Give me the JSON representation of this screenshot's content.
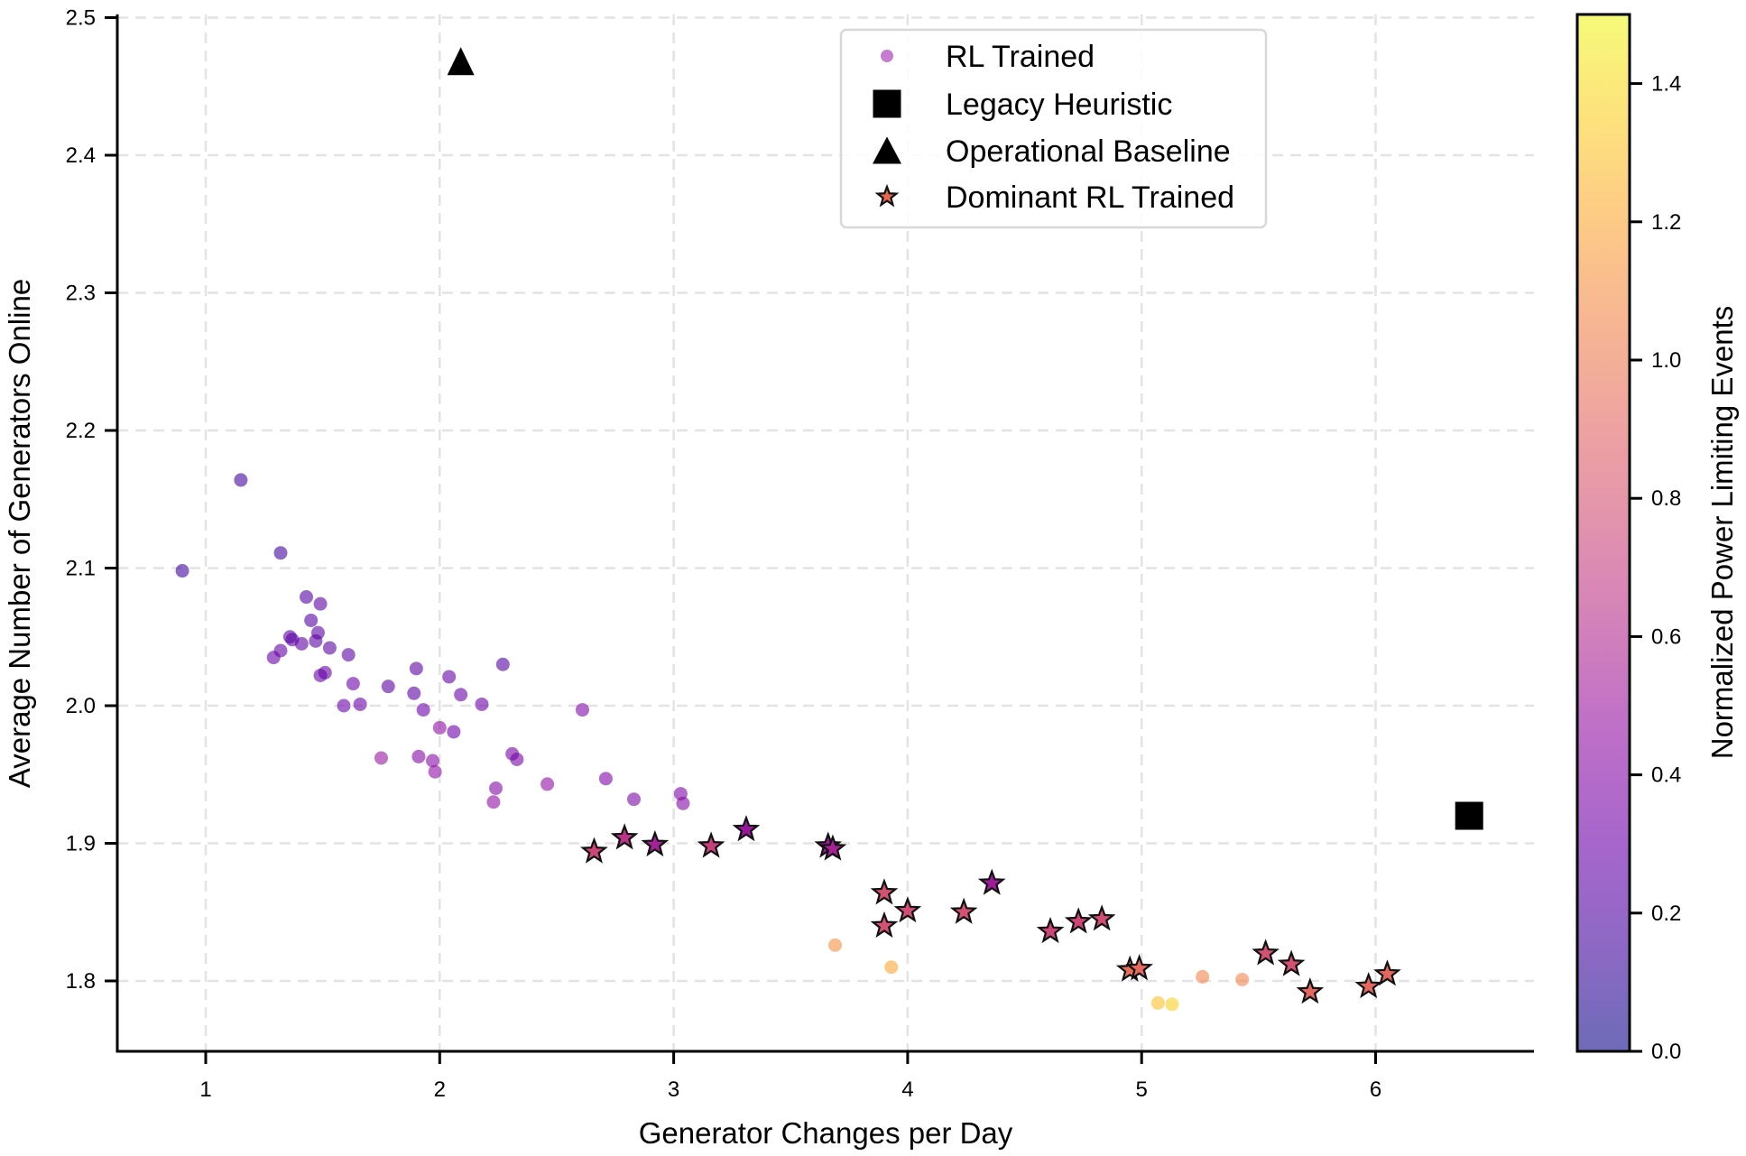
{
  "chart_data": {
    "type": "scatter",
    "title": "",
    "xlabel": "Generator Changes per Day",
    "ylabel": "Average Number of Generators Online",
    "xlim": [
      0.62,
      6.66
    ],
    "ylim": [
      1.71,
      2.5
    ],
    "x_ticks": [
      1,
      2,
      3,
      4,
      5,
      6
    ],
    "x_tick_labels": [
      "1",
      "2",
      "3",
      "4",
      "5",
      "6"
    ],
    "y_ticks": [
      1.8,
      1.9,
      2.0,
      2.1,
      2.2,
      2.3,
      2.4,
      2.5
    ],
    "y_tick_labels": [
      "1.8",
      "1.9",
      "2.0",
      "2.1",
      "2.2",
      "2.3",
      "2.4",
      "2.5"
    ],
    "grid": true,
    "colorbar": {
      "label": "Normalized Power Limiting Events",
      "colormap": "plasma",
      "range": [
        0.0,
        1.5
      ],
      "ticks": [
        0.0,
        0.2,
        0.4,
        0.6,
        0.8,
        1.0,
        1.2,
        1.4
      ],
      "tick_labels": [
        "0.0",
        "0.2",
        "0.4",
        "0.6",
        "0.8",
        "1.0",
        "1.2",
        "1.4"
      ]
    },
    "legend": {
      "placement": "top-center",
      "entries": [
        {
          "label": "RL Trained",
          "marker": "circle",
          "color": "#c77cd2"
        },
        {
          "label": "Legacy Heuristic",
          "marker": "square",
          "color": "#000000"
        },
        {
          "label": "Operational Baseline",
          "marker": "triangle",
          "color": "#000000"
        },
        {
          "label": "Dominant RL Trained",
          "marker": "star",
          "color": "#e8674f"
        }
      ]
    },
    "series": [
      {
        "name": "RL Trained",
        "marker": "circle",
        "points": [
          {
            "x": 0.9,
            "y": 2.098,
            "c": 0.15
          },
          {
            "x": 1.15,
            "y": 2.164,
            "c": 0.15
          },
          {
            "x": 1.32,
            "y": 2.111,
            "c": 0.15
          },
          {
            "x": 1.43,
            "y": 2.079,
            "c": 0.22
          },
          {
            "x": 1.49,
            "y": 2.074,
            "c": 0.25
          },
          {
            "x": 1.45,
            "y": 2.062,
            "c": 0.22
          },
          {
            "x": 1.36,
            "y": 2.05,
            "c": 0.25
          },
          {
            "x": 1.37,
            "y": 2.048,
            "c": 0.25
          },
          {
            "x": 1.48,
            "y": 2.053,
            "c": 0.25
          },
          {
            "x": 1.47,
            "y": 2.047,
            "c": 0.25
          },
          {
            "x": 1.41,
            "y": 2.045,
            "c": 0.25
          },
          {
            "x": 1.32,
            "y": 2.04,
            "c": 0.28
          },
          {
            "x": 1.29,
            "y": 2.035,
            "c": 0.28
          },
          {
            "x": 1.53,
            "y": 2.042,
            "c": 0.25
          },
          {
            "x": 1.61,
            "y": 2.037,
            "c": 0.25
          },
          {
            "x": 1.51,
            "y": 2.024,
            "c": 0.28
          },
          {
            "x": 1.49,
            "y": 2.022,
            "c": 0.28
          },
          {
            "x": 1.63,
            "y": 2.016,
            "c": 0.3
          },
          {
            "x": 1.78,
            "y": 2.014,
            "c": 0.25
          },
          {
            "x": 1.9,
            "y": 2.027,
            "c": 0.25
          },
          {
            "x": 2.04,
            "y": 2.021,
            "c": 0.28
          },
          {
            "x": 2.27,
            "y": 2.03,
            "c": 0.22
          },
          {
            "x": 1.89,
            "y": 2.009,
            "c": 0.25
          },
          {
            "x": 2.09,
            "y": 2.008,
            "c": 0.3
          },
          {
            "x": 1.59,
            "y": 2.0,
            "c": 0.3
          },
          {
            "x": 1.66,
            "y": 2.001,
            "c": 0.3
          },
          {
            "x": 1.93,
            "y": 1.997,
            "c": 0.3
          },
          {
            "x": 2.18,
            "y": 2.001,
            "c": 0.3
          },
          {
            "x": 2.0,
            "y": 1.984,
            "c": 0.45
          },
          {
            "x": 2.06,
            "y": 1.981,
            "c": 0.3
          },
          {
            "x": 1.75,
            "y": 1.962,
            "c": 0.5
          },
          {
            "x": 1.91,
            "y": 1.963,
            "c": 0.4
          },
          {
            "x": 1.97,
            "y": 1.96,
            "c": 0.42
          },
          {
            "x": 1.98,
            "y": 1.952,
            "c": 0.45
          },
          {
            "x": 2.31,
            "y": 1.965,
            "c": 0.35
          },
          {
            "x": 2.33,
            "y": 1.961,
            "c": 0.35
          },
          {
            "x": 2.24,
            "y": 1.94,
            "c": 0.4
          },
          {
            "x": 2.23,
            "y": 1.93,
            "c": 0.45
          },
          {
            "x": 2.46,
            "y": 1.943,
            "c": 0.45
          },
          {
            "x": 2.61,
            "y": 1.997,
            "c": 0.38
          },
          {
            "x": 2.71,
            "y": 1.947,
            "c": 0.38
          },
          {
            "x": 2.83,
            "y": 1.932,
            "c": 0.38
          },
          {
            "x": 3.03,
            "y": 1.936,
            "c": 0.38
          },
          {
            "x": 3.04,
            "y": 1.929,
            "c": 0.4
          },
          {
            "x": 3.69,
            "y": 1.826,
            "c": 1.1
          },
          {
            "x": 3.93,
            "y": 1.81,
            "c": 1.2
          },
          {
            "x": 5.07,
            "y": 1.784,
            "c": 1.3
          },
          {
            "x": 5.13,
            "y": 1.783,
            "c": 1.35
          },
          {
            "x": 5.26,
            "y": 1.803,
            "c": 1.05
          },
          {
            "x": 5.43,
            "y": 1.801,
            "c": 1.05
          }
        ]
      },
      {
        "name": "Dominant RL Trained",
        "marker": "star",
        "points": [
          {
            "x": 2.66,
            "y": 1.894,
            "c": 0.75
          },
          {
            "x": 2.79,
            "y": 1.904,
            "c": 0.65
          },
          {
            "x": 2.92,
            "y": 1.899,
            "c": 0.55
          },
          {
            "x": 3.16,
            "y": 1.898,
            "c": 0.72
          },
          {
            "x": 3.31,
            "y": 1.91,
            "c": 0.5
          },
          {
            "x": 3.66,
            "y": 1.898,
            "c": 0.5
          },
          {
            "x": 3.68,
            "y": 1.896,
            "c": 0.55
          },
          {
            "x": 3.9,
            "y": 1.864,
            "c": 0.8
          },
          {
            "x": 4.0,
            "y": 1.851,
            "c": 0.78
          },
          {
            "x": 3.9,
            "y": 1.84,
            "c": 0.8
          },
          {
            "x": 4.24,
            "y": 1.85,
            "c": 0.8
          },
          {
            "x": 4.36,
            "y": 1.871,
            "c": 0.52
          },
          {
            "x": 4.61,
            "y": 1.836,
            "c": 0.75
          },
          {
            "x": 4.73,
            "y": 1.843,
            "c": 0.75
          },
          {
            "x": 4.83,
            "y": 1.845,
            "c": 0.78
          },
          {
            "x": 4.95,
            "y": 1.808,
            "c": 0.95
          },
          {
            "x": 4.99,
            "y": 1.809,
            "c": 0.93
          },
          {
            "x": 5.53,
            "y": 1.82,
            "c": 0.8
          },
          {
            "x": 5.64,
            "y": 1.812,
            "c": 0.8
          },
          {
            "x": 5.72,
            "y": 1.792,
            "c": 0.92
          },
          {
            "x": 5.97,
            "y": 1.796,
            "c": 0.92
          },
          {
            "x": 6.05,
            "y": 1.805,
            "c": 0.92
          }
        ]
      },
      {
        "name": "Operational Baseline",
        "marker": "triangle",
        "points": [
          {
            "x": 2.09,
            "y": 2.468
          }
        ]
      },
      {
        "name": "Legacy Heuristic",
        "marker": "square",
        "points": [
          {
            "x": 6.4,
            "y": 1.92
          }
        ]
      }
    ]
  }
}
